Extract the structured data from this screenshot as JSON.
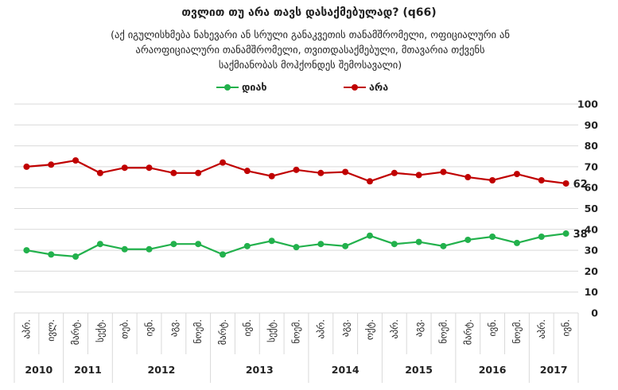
{
  "title": "თვლით თუ არა თავს დასაქმებულად? (q66)",
  "subtitle_lines": [
    "(აქ იგულისხმება ნახევარი ან სრული განაკვეთის თანამშრომელი, ოფიციალური ან",
    "არაოფიციალური თანამშრომელი, თვითდასაქმებული, მთავარია თქვენს",
    "საქმიანობას მოჰქონდეს შემოსავალი)"
  ],
  "chart_data": {
    "type": "line",
    "title": "თვლით თუ არა თავს დასაქმებულად? (q66)",
    "ylim": [
      0,
      100
    ],
    "yticks": [
      0,
      10,
      20,
      30,
      40,
      50,
      60,
      70,
      80,
      90,
      100
    ],
    "grid": true,
    "legend_position": "top",
    "x_labels": [
      "აპრ.",
      "ივლ.",
      "მარტ.",
      "სექტ.",
      "თებ.",
      "ივნ.",
      "აგვ.",
      "ნოემ.",
      "მარტ.",
      "ივნ.",
      "სექტ.",
      "ნოემ.",
      "აპრ.",
      "აგვ.",
      "ოქტ.",
      "აპრ.",
      "აგვ.",
      "ნოემ.",
      "მარტ.",
      "ივნ.",
      "ნოემ.",
      "აპრ.",
      "ივნ."
    ],
    "year_groups": [
      {
        "year": "2010",
        "count": 2
      },
      {
        "year": "2011",
        "count": 2
      },
      {
        "year": "2012",
        "count": 4
      },
      {
        "year": "2013",
        "count": 4
      },
      {
        "year": "2014",
        "count": 3
      },
      {
        "year": "2015",
        "count": 3
      },
      {
        "year": "2016",
        "count": 3
      },
      {
        "year": "2017",
        "count": 2
      }
    ],
    "series": [
      {
        "name": "დიახ",
        "color": "#22b14c",
        "values": [
          30,
          28,
          27,
          33,
          30.5,
          30.5,
          33,
          33,
          28,
          32,
          34.5,
          31.5,
          33,
          32,
          37,
          33,
          34,
          32,
          35,
          36.5,
          33.5,
          36.5,
          38
        ],
        "end_label": "38"
      },
      {
        "name": "არა",
        "color": "#c00000",
        "values": [
          70,
          71,
          73,
          67,
          69.5,
          69.5,
          67,
          67,
          72,
          68,
          65.5,
          68.5,
          67,
          67.5,
          63,
          67,
          66,
          67.5,
          65,
          63.5,
          66.5,
          63.5,
          62
        ],
        "end_label": "62"
      }
    ]
  }
}
